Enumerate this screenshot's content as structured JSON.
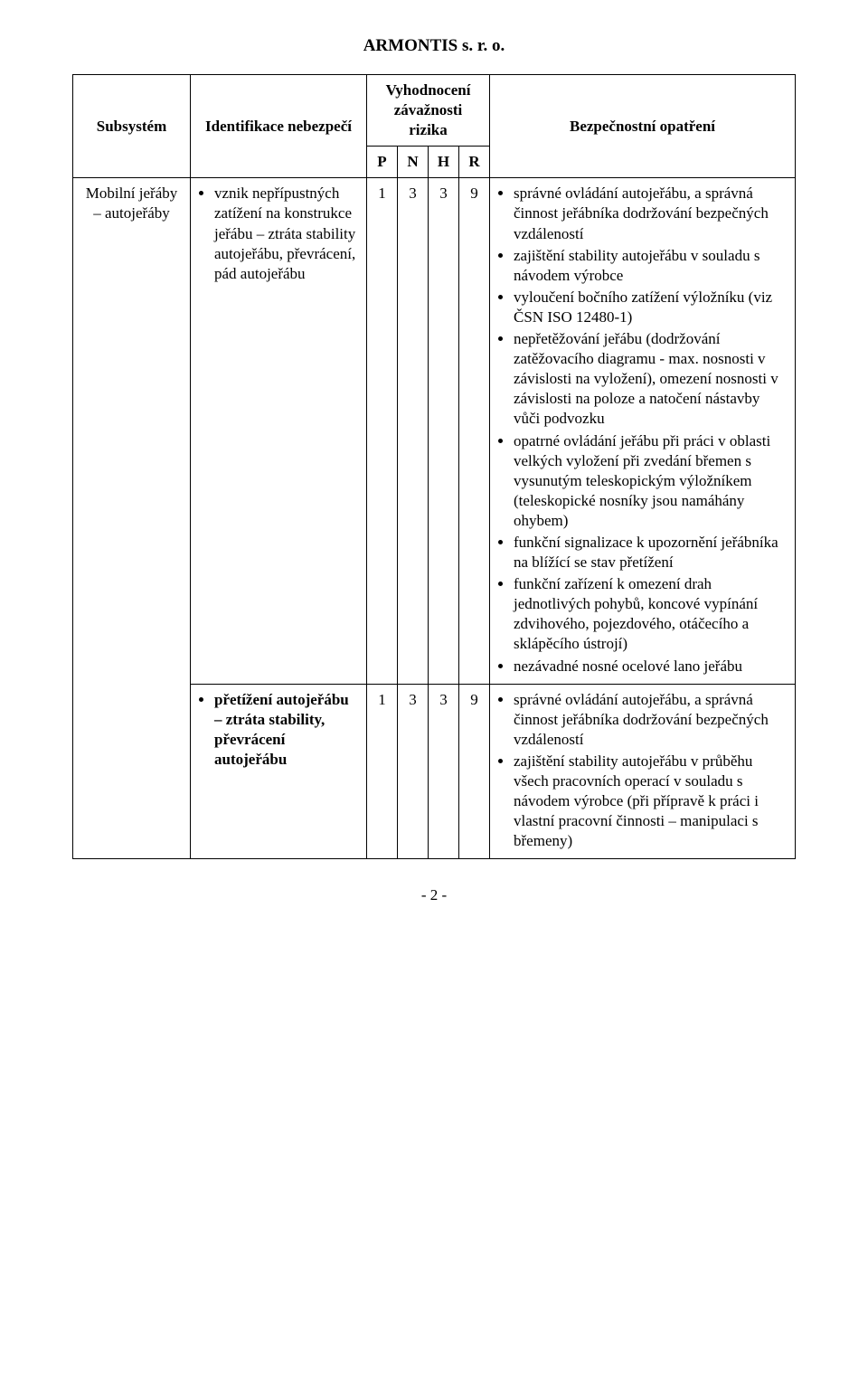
{
  "doc": {
    "title": "ARMONTIS s. r. o.",
    "footer": "- 2 -"
  },
  "columns": {
    "subsystem": "Subsystém",
    "identification": "Identifikace nebezpečí",
    "eval_group": "Vyhodnocení závažnosti rizika",
    "p": "P",
    "n": "N",
    "h": "H",
    "r": "R",
    "measure": "Bezpečnostní opatření"
  },
  "subsystem": {
    "label": "Mobilní jeřáby – autojeřáby"
  },
  "rows": [
    {
      "hazards": [
        "vznik nepřípustných zatížení na konstrukce jeřábu – ztráta stability autojeřábu, převrácení, pád autojeřábu"
      ],
      "p": "1",
      "n": "3",
      "h": "3",
      "r": "9",
      "measures": [
        "správné ovládání autojeřábu, a správná činnost jeřábníka dodržování bezpečných vzdáleností",
        "zajištění stability autojeřábu v souladu s návodem výrobce",
        "vyloučení bočního zatížení výložníku (viz ČSN ISO 12480-1)",
        "nepřetěžování  jeřábu (dodržování  zatěžovacího diagramu  - max. nosnosti v závislosti na vyložení), omezení nosnosti v závislosti na poloze a natočení nástavby vůči podvozku",
        "opatrné ovládání jeřábu při práci v oblasti velkých vyložení při zvedání břemen s vysunutým teleskopickým výložníkem (teleskopické nosníky jsou namáhány ohybem)",
        "funkční signalizace k upozornění jeřábníka na blížící se stav přetížení",
        "funkční zařízení k omezení drah jednotlivých pohybů, koncové vypínání zdvihového, pojezdového, otáčecího a sklápěcího ústrojí)",
        "nezávadné nosné ocelové lano jeřábu"
      ]
    },
    {
      "hazards": [
        "přetížení autojeřábu – ztráta stability, převrácení autojeřábu"
      ],
      "p": "1",
      "n": "3",
      "h": "3",
      "r": "9",
      "measures": [
        "správné ovládání autojeřábu, a správná činnost jeřábníka dodržování bezpečných vzdáleností",
        "zajištění stability autojeřábu v průběhu všech pracovních operací v souladu s návodem výrobce (při přípravě k práci i vlastní pracovní činnosti – manipulaci s břemeny)"
      ]
    }
  ]
}
